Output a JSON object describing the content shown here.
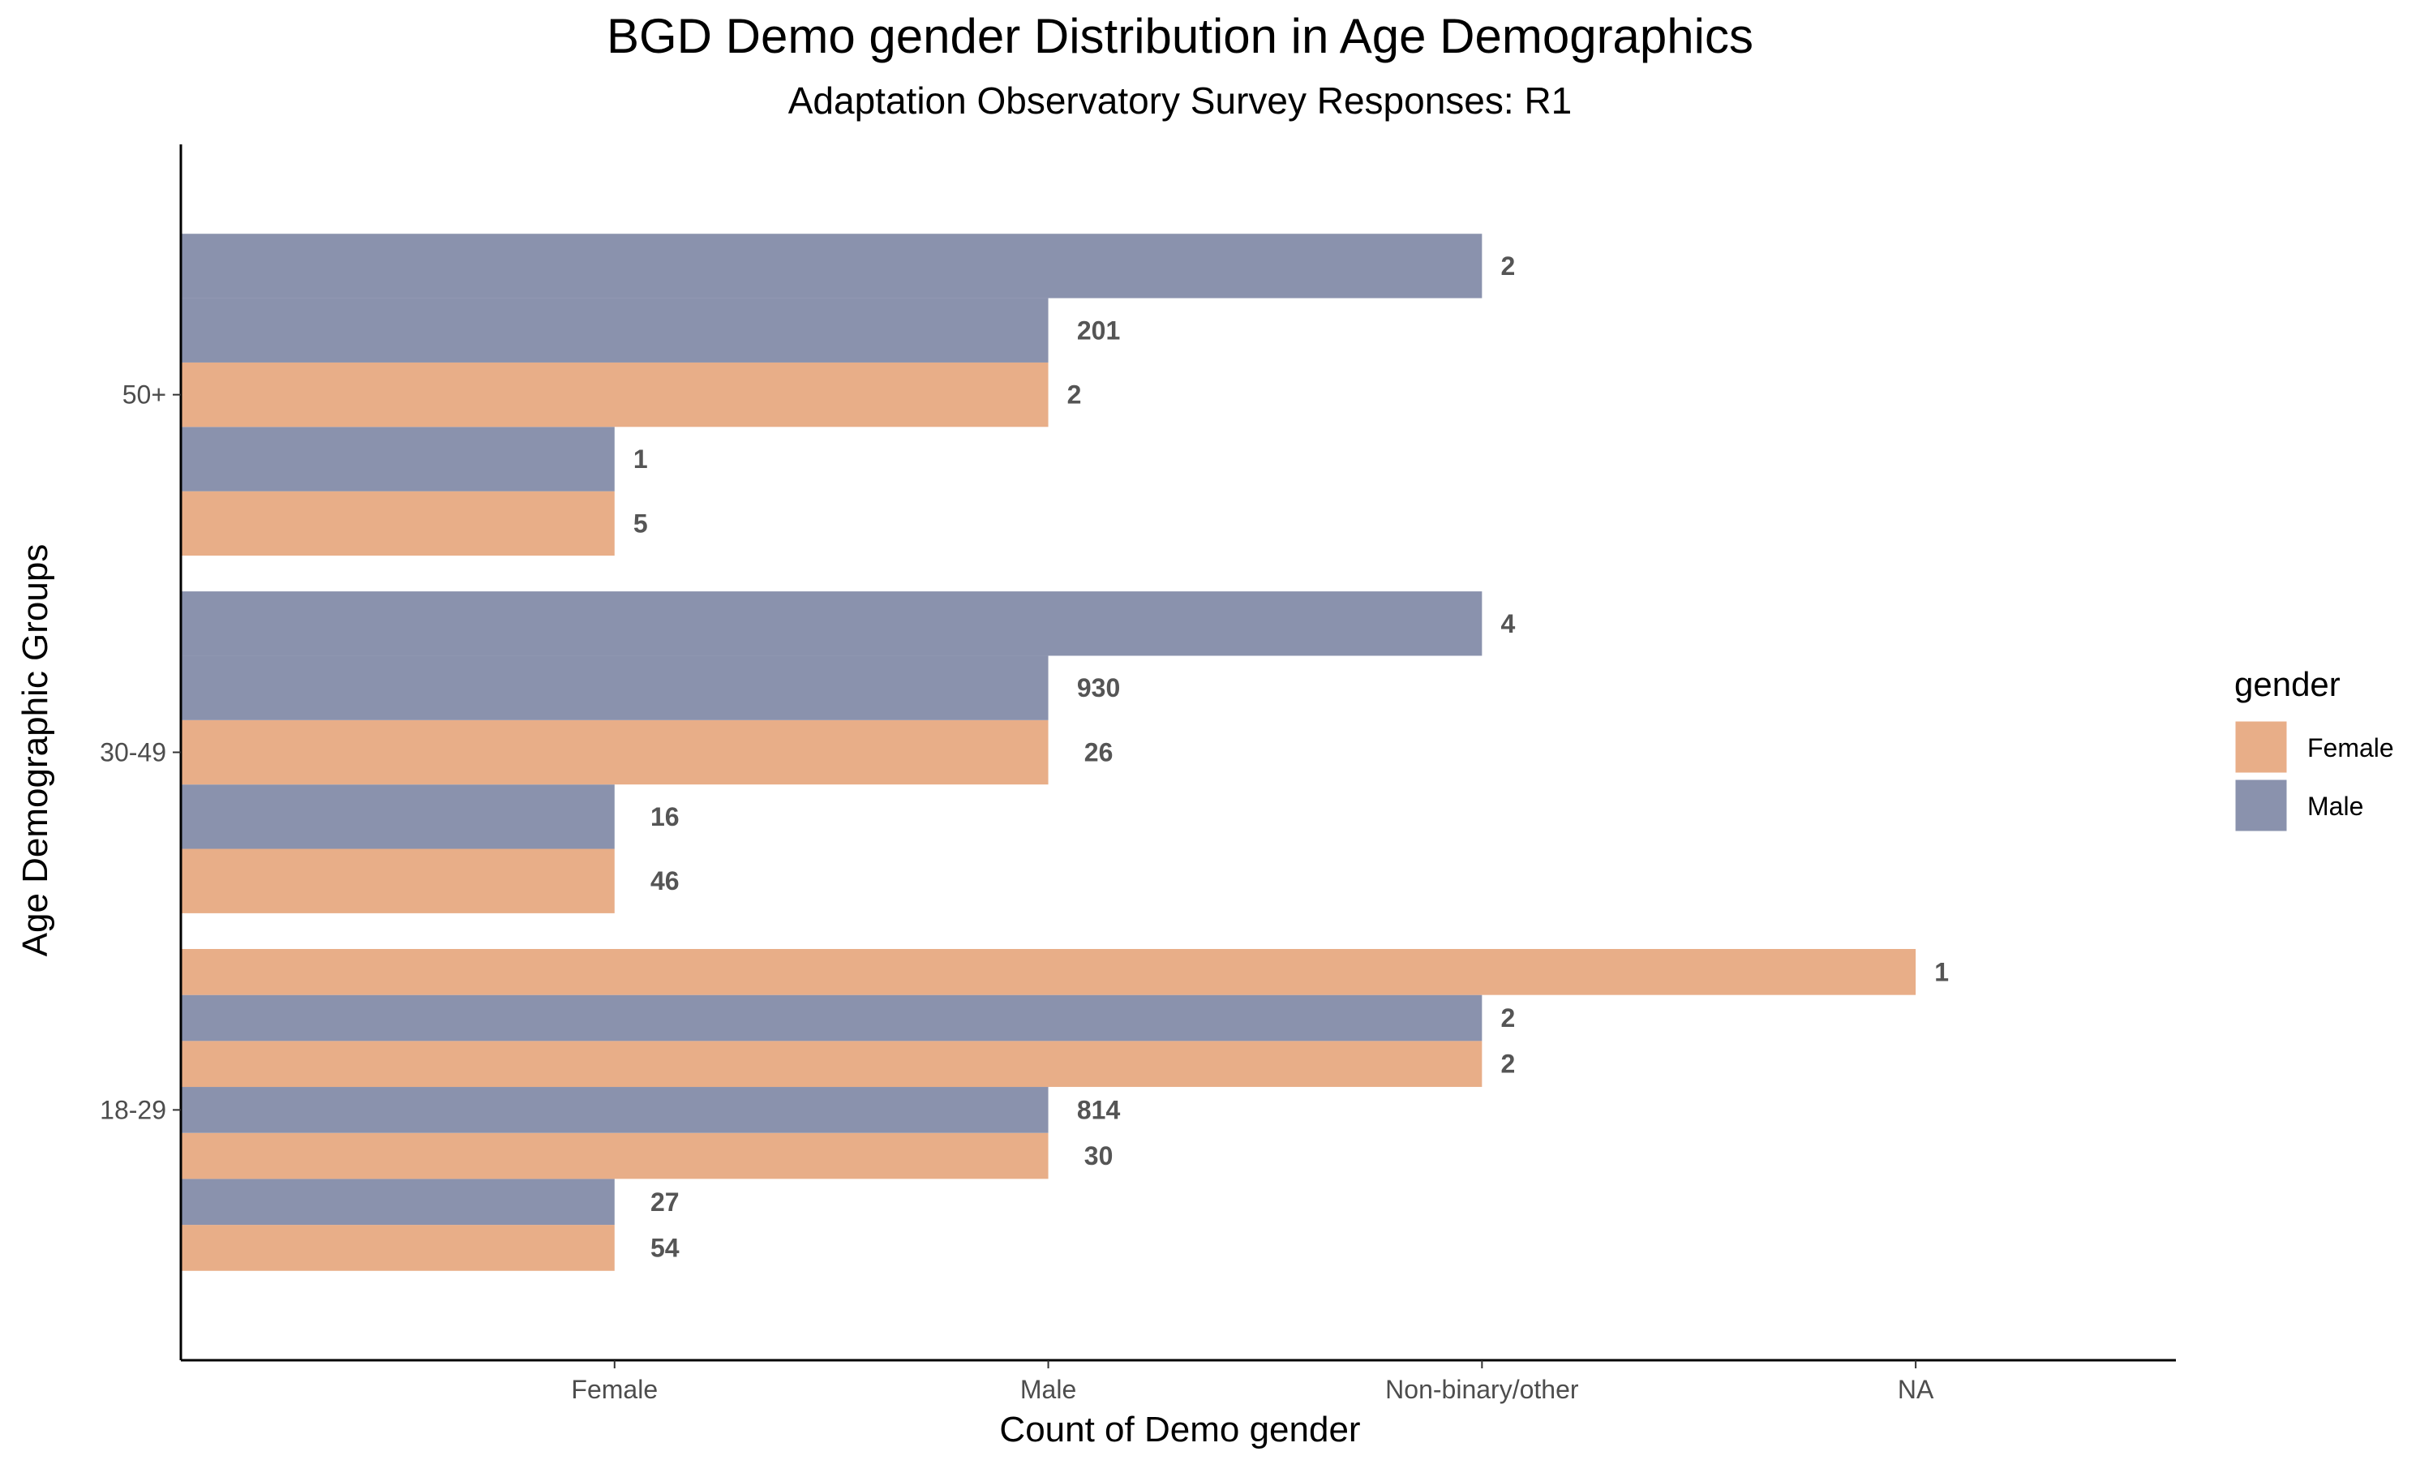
{
  "chart_data": {
    "type": "bar",
    "orientation": "horizontal",
    "title": "BGD Demo gender Distribution in Age Demographics",
    "subtitle": "Adaptation Observatory Survey Responses: R1",
    "xlabel": "Count of Demo gender",
    "ylabel": "Age Demographic Groups",
    "x_categories": [
      "Female",
      "Male",
      "Non-binary/other",
      "NA"
    ],
    "y_categories": [
      "18-29",
      "30-49",
      "50+"
    ],
    "legend": {
      "title": "gender",
      "position": "right",
      "items": [
        {
          "name": "Female",
          "color": "#E8AE88"
        },
        {
          "name": "Male",
          "color": "#8A92AD"
        }
      ]
    },
    "grid": false,
    "groups": [
      {
        "age": "18-29",
        "bars": [
          {
            "gender": "Female",
            "response": "Female",
            "count": 54
          },
          {
            "gender": "Male",
            "response": "Female",
            "count": 27
          },
          {
            "gender": "Female",
            "response": "Male",
            "count": 30
          },
          {
            "gender": "Male",
            "response": "Male",
            "count": 814
          },
          {
            "gender": "Female",
            "response": "Non-binary/other",
            "count": 2
          },
          {
            "gender": "Male",
            "response": "Non-binary/other",
            "count": 2
          },
          {
            "gender": "Female",
            "response": "NA",
            "count": 1
          }
        ]
      },
      {
        "age": "30-49",
        "bars": [
          {
            "gender": "Female",
            "response": "Female",
            "count": 46
          },
          {
            "gender": "Male",
            "response": "Female",
            "count": 16
          },
          {
            "gender": "Female",
            "response": "Male",
            "count": 26
          },
          {
            "gender": "Male",
            "response": "Male",
            "count": 930
          },
          {
            "gender": "Male",
            "response": "Non-binary/other",
            "count": 4
          }
        ]
      },
      {
        "age": "50+",
        "bars": [
          {
            "gender": "Female",
            "response": "Female",
            "count": 5
          },
          {
            "gender": "Male",
            "response": "Female",
            "count": 1
          },
          {
            "gender": "Female",
            "response": "Male",
            "count": 2
          },
          {
            "gender": "Male",
            "response": "Male",
            "count": 201
          },
          {
            "gender": "Male",
            "response": "Non-binary/other",
            "count": 2
          }
        ]
      }
    ]
  }
}
